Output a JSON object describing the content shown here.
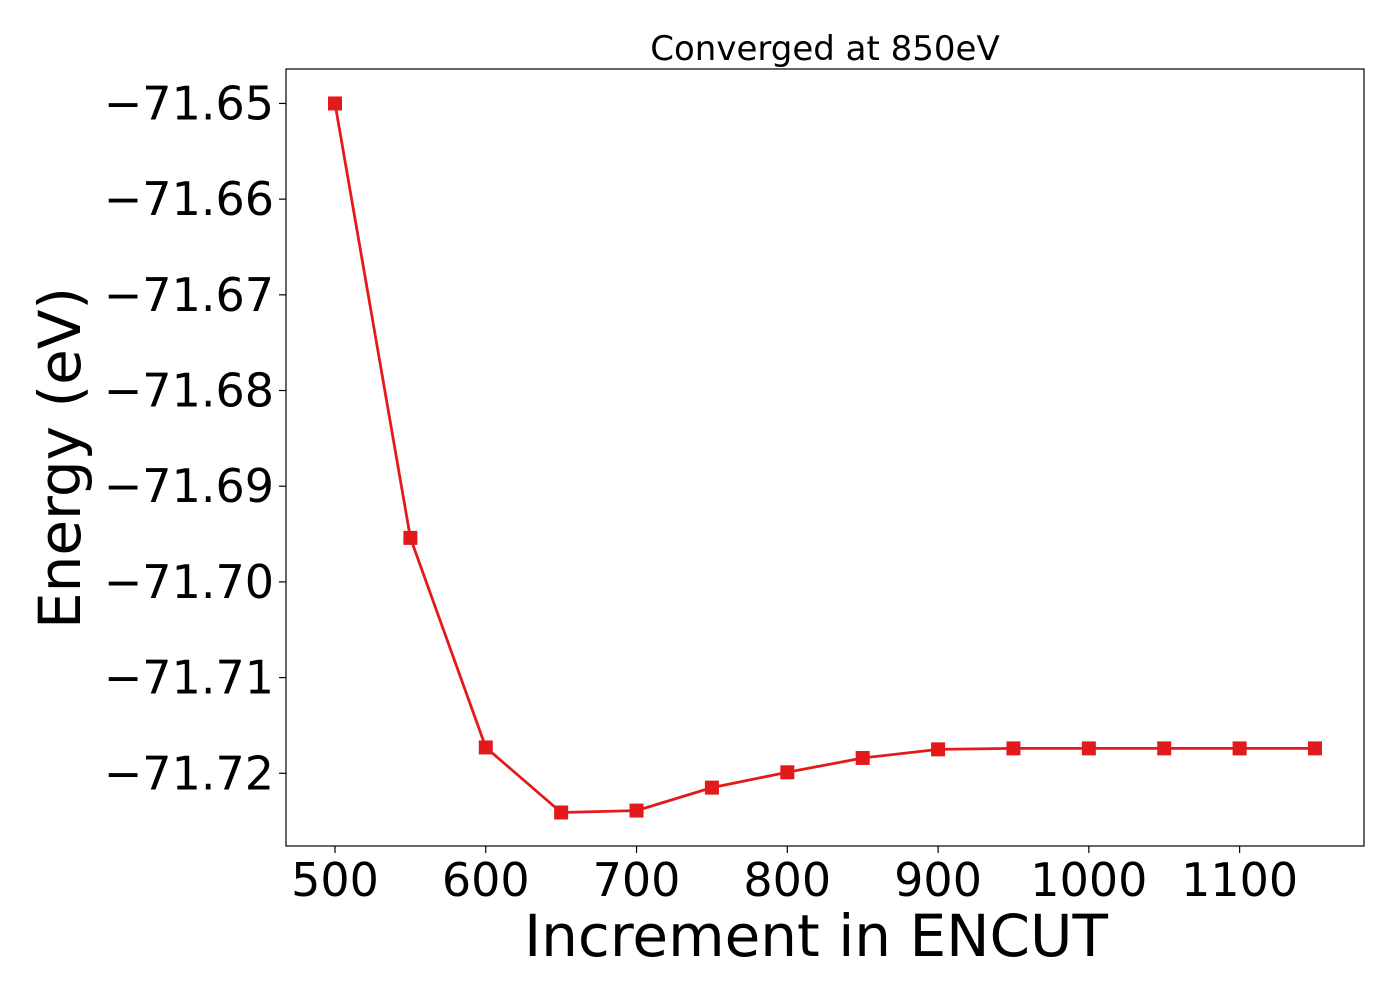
{
  "chart_data": {
    "type": "line",
    "title": "Converged at 850eV",
    "xlabel": "Increment in ENCUT",
    "ylabel": "Energy (eV)",
    "x": [
      500,
      550,
      600,
      650,
      700,
      750,
      800,
      850,
      900,
      950,
      1000,
      1050,
      1100,
      1150
    ],
    "series": [
      {
        "values": [
          -71.65,
          -71.6954,
          -71.7173,
          -71.7241,
          -71.7239,
          -71.7215,
          -71.7199,
          -71.7184,
          -71.7175,
          -71.7174,
          -71.7174,
          -71.7174,
          -71.7174,
          -71.7174
        ],
        "color": "#e31a1c",
        "marker": "square"
      }
    ],
    "xlim": [
      467.5,
      1182.5
    ],
    "ylim": [
      -71.7276,
      -71.6464
    ],
    "xticks": [
      500,
      600,
      700,
      800,
      900,
      1000,
      1100
    ],
    "xtick_labels": [
      "500",
      "600",
      "700",
      "800",
      "900",
      "1000",
      "1100"
    ],
    "yticks": [
      -71.65,
      -71.66,
      -71.67,
      -71.68,
      -71.69,
      -71.7,
      -71.71,
      -71.72
    ],
    "ytick_labels": [
      "−71.65",
      "−71.66",
      "−71.67",
      "−71.68",
      "−71.69",
      "−71.70",
      "−71.71",
      "−71.72"
    ],
    "grid": false,
    "legend": "none"
  }
}
